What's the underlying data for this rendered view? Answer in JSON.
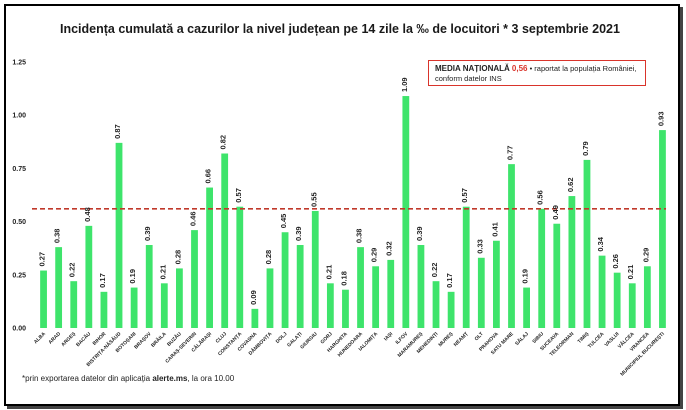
{
  "title": "Incidența cumulată a cazurilor la nivel județean pe 14 zile la ‰ de locuitori * 3 septembrie 2021",
  "legend": {
    "label": "MEDIA NAȚIONALĂ",
    "value": "0,56",
    "text_line1": "• raportat la populația României,",
    "text_line2": "conform datelor INS"
  },
  "footnote": {
    "prefix": "*prin exportarea  datelor din aplicația ",
    "source": "alerte.ms",
    "suffix": ", la ora 10.00"
  },
  "colors": {
    "bar": "#3ee46b",
    "mean_line": "#c0392b"
  },
  "chart_data": {
    "type": "bar",
    "title": "Incidența cumulată a cazurilor la nivel județean pe 14 zile la ‰ de locuitori * 3 septembrie 2021",
    "ylim": [
      0,
      1.25
    ],
    "yticks": [
      "0.00",
      "0.25",
      "0.50",
      "0.75",
      "1.00",
      "1.25"
    ],
    "yticks_values": [
      0,
      0.25,
      0.5,
      0.75,
      1.0,
      1.25
    ],
    "mean_line": 0.56,
    "categories": [
      "ALBA",
      "ARAD",
      "ARGEȘ",
      "BACĂU",
      "BIHOR",
      "BISTRIȚA-NĂSĂUD",
      "BOTOȘANI",
      "BRAȘOV",
      "BRĂILA",
      "BUZĂU",
      "CARAȘ-SEVERIN",
      "CĂLĂRAȘI",
      "CLUJ",
      "CONSTANȚA",
      "COVASNA",
      "DÂMBOVIȚA",
      "DOLJ",
      "GALAȚI",
      "GIURGIU",
      "GORJ",
      "HARGHITA",
      "HUNEDOARA",
      "IALOMIȚA",
      "IAȘI",
      "ILFOV",
      "MARAMUREȘ",
      "MEHEDINȚI",
      "MUREȘ",
      "NEAMȚ",
      "OLT",
      "PRAHOVA",
      "SATU MARE",
      "SĂLAJ",
      "SIBIU",
      "SUCEAVA",
      "TELEORMAN",
      "TIMIȘ",
      "TULCEA",
      "VASLUI",
      "VÂLCEA",
      "VRANCEA",
      "MUNICIPIUL BUCUREȘTI"
    ],
    "values": [
      0.27,
      0.38,
      0.22,
      0.48,
      0.17,
      0.87,
      0.19,
      0.39,
      0.21,
      0.28,
      0.46,
      0.66,
      0.82,
      0.57,
      0.09,
      0.28,
      0.45,
      0.39,
      0.55,
      0.21,
      0.18,
      0.38,
      0.29,
      0.32,
      1.09,
      0.39,
      0.22,
      0.17,
      0.57,
      0.33,
      0.41,
      0.77,
      0.19,
      0.56,
      0.49,
      0.62,
      0.79,
      0.34,
      0.26,
      0.21,
      0.29,
      0.93
    ],
    "value_labels": [
      "0.27",
      "0.38",
      "0.22",
      "0.48",
      "0.17",
      "0.87",
      "0.19",
      "0.39",
      "0.21",
      "0.28",
      "0.46",
      "0.66",
      "0.82",
      "0.57",
      "0.09",
      "0.28",
      "0.45",
      "0.39",
      "0.55",
      "0.21",
      "0.18",
      "0.38",
      "0.29",
      "0.32",
      "1.09",
      "0.39",
      "0.22",
      "0.17",
      "0.57",
      "0.33",
      "0.41",
      "0.77",
      "0.19",
      "0.56",
      "0.49",
      "0.62",
      "0.79",
      "0.34",
      "0.26",
      "0.21",
      "0.29",
      "0.93"
    ]
  }
}
